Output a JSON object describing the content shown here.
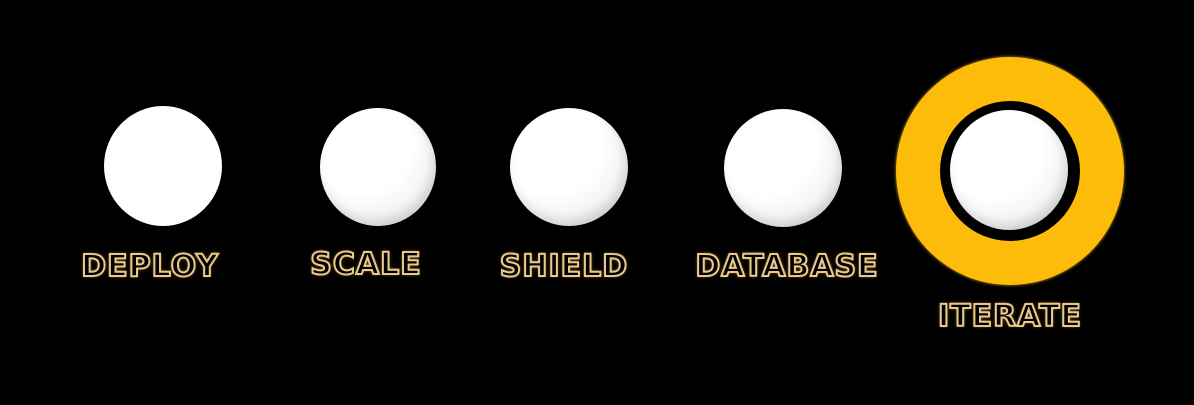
{
  "colors": {
    "background": "#000000",
    "orb": "#ffffff",
    "active_ring": "#fdbb0a",
    "label_outline": "#e9c98c"
  },
  "steps": [
    {
      "label": "DEPLOY",
      "active": false
    },
    {
      "label": "SCALE",
      "active": false
    },
    {
      "label": "SHIELD",
      "active": false
    },
    {
      "label": "DATABASE",
      "active": false
    },
    {
      "label": "ITERATE",
      "active": true
    }
  ]
}
